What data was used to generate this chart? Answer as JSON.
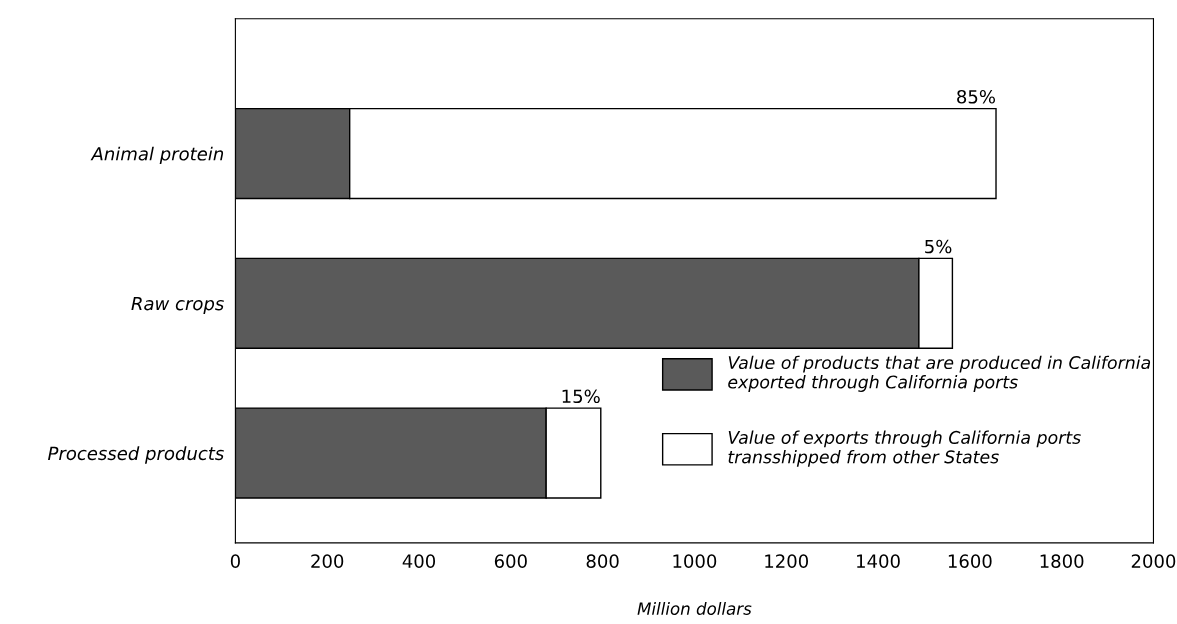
{
  "chart_data": {
    "type": "bar",
    "orientation": "horizontal",
    "stacked": true,
    "xlabel": "Million dollars",
    "categories": [
      "Animal protein",
      "Raw crops",
      "Processed products"
    ],
    "series": [
      {
        "name": "Value of products that are produced in California exported through California ports",
        "color": "#5a5a5a",
        "values": [
          249,
          1489,
          677
        ]
      },
      {
        "name": "Value of exports through California ports transshipped from other States",
        "color": "#ffffff",
        "values": [
          1408,
          73,
          119
        ]
      }
    ],
    "annotations": [
      {
        "text": "85%",
        "x": 1657,
        "y": "Animal protein"
      },
      {
        "text": "5%",
        "x": 1562,
        "y": "Raw crops"
      },
      {
        "text": "15%",
        "x": 796,
        "y": "Processed products"
      }
    ],
    "xlim": [
      0,
      2000
    ],
    "xticks": [
      0,
      200,
      400,
      600,
      800,
      1000,
      1200,
      1400,
      1600,
      1800,
      2000
    ],
    "grid": false,
    "legend": "bottom right"
  }
}
